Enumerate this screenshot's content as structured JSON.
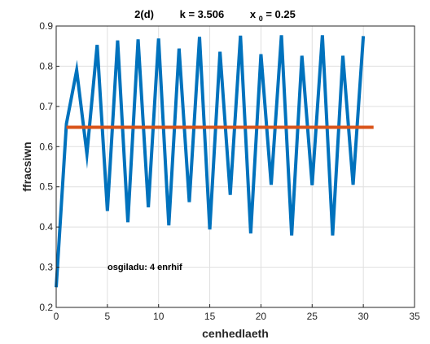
{
  "chart_data": {
    "type": "line",
    "title": {
      "prefix": "2(d)",
      "k_label": "k  =  3.506",
      "x0_main": "x",
      "x0_sub": "0",
      "x0_value": "  =  0.25"
    },
    "xlabel": "cenhedlaeth",
    "ylabel": "ffracsiwn",
    "xlim": [
      0,
      35
    ],
    "ylim": [
      0.2,
      0.9
    ],
    "xticks": [
      "0",
      "5",
      "10",
      "15",
      "20",
      "25",
      "30",
      "35"
    ],
    "yticks": [
      "0.2",
      "0.3",
      "0.4",
      "0.5",
      "0.6",
      "0.7",
      "0.8",
      "0.9"
    ],
    "grid": true,
    "annotation": "osgiladu: 4 enrhif",
    "colors": {
      "series": "#0072BD",
      "equilibrium": "#D95319",
      "grid": "#dfdfdf",
      "axis": "#262626"
    },
    "series": [
      {
        "x": [
          0,
          1,
          2,
          3,
          4,
          5,
          6,
          7,
          8,
          9,
          10,
          11,
          12,
          13,
          14,
          15,
          16,
          17,
          18,
          19,
          20,
          21,
          22,
          23,
          24,
          25,
          26,
          27,
          28,
          29,
          30
        ],
        "values": [
          0.25,
          0.657,
          0.79,
          0.582,
          0.853,
          0.44,
          0.864,
          0.412,
          0.867,
          0.449,
          0.869,
          0.404,
          0.844,
          0.462,
          0.873,
          0.394,
          0.836,
          0.48,
          0.876,
          0.384,
          0.83,
          0.505,
          0.877,
          0.379,
          0.826,
          0.504,
          0.877,
          0.379,
          0.826,
          0.505,
          0.875
        ]
      },
      {
        "x": [
          1,
          31
        ],
        "values": [
          0.648,
          0.648
        ]
      }
    ]
  }
}
